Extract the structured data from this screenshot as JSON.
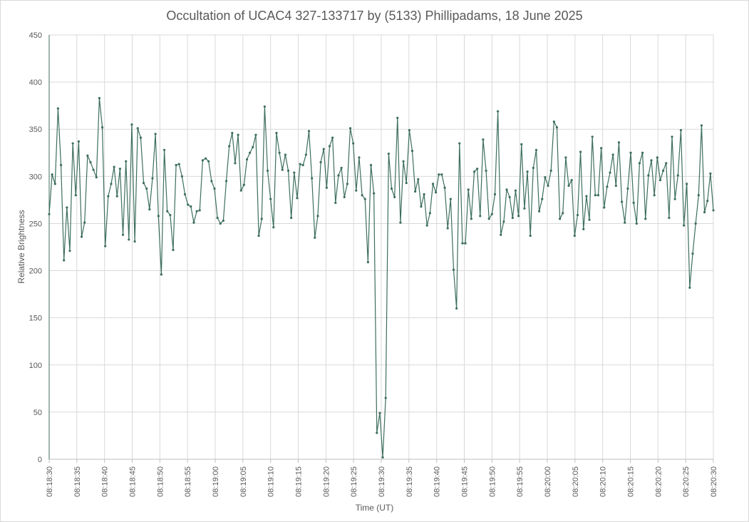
{
  "chart_data": {
    "type": "line",
    "title": "Occultation of UCAC4 327-133717 by (5133) Phillipadams, 18 June 2025",
    "xlabel": "Time (UT)",
    "ylabel": "Relative Brightness",
    "ylim": [
      0,
      450
    ],
    "yticks": [
      0,
      50,
      100,
      150,
      200,
      250,
      300,
      350,
      400,
      450
    ],
    "xlim": [
      "08:18:30",
      "08:20:30"
    ],
    "xtick_step_seconds": 5,
    "xtick_labels": [
      "08:18:30",
      "08:18:35",
      "08:18:40",
      "08:18:45",
      "08:18:50",
      "08:18:55",
      "08:19:00",
      "08:19:05",
      "08:19:10",
      "08:19:15",
      "08:19:20",
      "08:19:25",
      "08:19:30",
      "08:19:35",
      "08:19:40",
      "08:19:45",
      "08:19:50",
      "08:19:55",
      "08:20:00",
      "08:20:05",
      "08:20:10",
      "08:20:15",
      "08:20:20",
      "08:20:25",
      "08:20:30"
    ],
    "grid": true,
    "legend": "none",
    "line_color": "#3d6e5e",
    "series": [
      {
        "values": [
          260,
          302,
          292,
          372,
          312,
          211,
          267,
          221,
          335,
          280,
          337,
          236,
          251,
          322,
          315,
          307,
          299,
          383,
          352,
          226,
          279,
          292,
          310,
          279,
          308,
          238,
          316,
          233,
          355,
          231,
          351,
          341,
          293,
          287,
          265,
          298,
          345,
          258,
          196,
          328,
          263,
          259,
          222,
          312,
          313,
          300,
          281,
          270,
          268,
          251,
          263,
          264,
          317,
          319,
          316,
          295,
          287,
          256,
          250,
          253,
          295,
          332,
          346,
          314,
          344,
          285,
          291,
          318,
          325,
          331,
          344,
          237,
          255,
          374,
          306,
          276,
          246,
          346,
          325,
          307,
          323,
          306,
          256,
          304,
          277,
          313,
          312,
          323,
          348,
          298,
          235,
          258,
          315,
          329,
          288,
          332,
          341,
          272,
          301,
          309,
          278,
          292,
          351,
          335,
          285,
          320,
          280,
          276,
          209,
          312,
          282,
          28,
          49,
          2,
          65,
          324,
          287,
          278,
          362,
          251,
          316,
          293,
          349,
          327,
          284,
          297,
          268,
          281,
          248,
          261,
          292,
          283,
          302,
          302,
          288,
          245,
          276,
          201,
          160,
          335,
          229,
          229,
          286,
          255,
          305,
          308,
          258,
          339,
          306,
          255,
          260,
          281,
          369,
          238,
          252,
          286,
          278,
          256,
          285,
          258,
          334,
          266,
          305,
          237,
          309,
          328,
          263,
          276,
          299,
          290,
          306,
          358,
          352,
          255,
          261,
          320,
          290,
          296,
          237,
          259,
          326,
          244,
          279,
          254,
          342,
          280,
          280,
          330,
          267,
          289,
          304,
          323,
          290,
          336,
          273,
          251,
          287,
          325,
          272,
          250,
          314,
          325,
          255,
          301,
          317,
          280,
          320,
          296,
          306,
          314,
          256,
          342,
          276,
          301,
          349,
          248,
          292,
          182,
          218,
          250,
          280,
          354,
          262,
          274,
          303,
          264
        ]
      }
    ]
  }
}
